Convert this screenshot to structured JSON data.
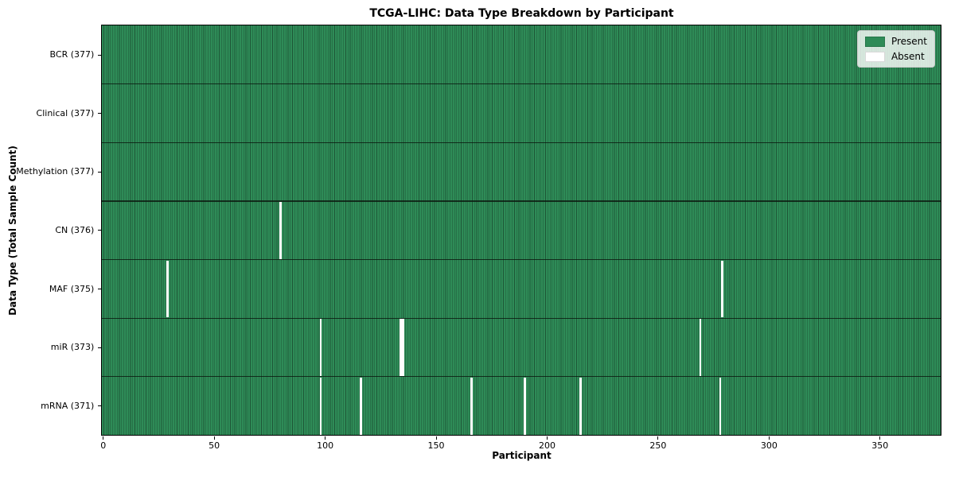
{
  "chart_data": {
    "type": "heatmap",
    "title": "TCGA-LIHC: Data Type Breakdown by Participant",
    "xlabel": "Participant",
    "ylabel": "Data Type (Total Sample Count)",
    "x_ticks": [
      0,
      50,
      100,
      150,
      200,
      250,
      300,
      350
    ],
    "x_range": [
      0,
      377
    ],
    "n_participants": 377,
    "grid": false,
    "legend_position": "upper-right",
    "colors": {
      "present": "#2e8b57",
      "absent": "#ffffff",
      "cell_edge": "#1e5737",
      "row_separator": "#14241a",
      "legend_face": "#e4ebe4"
    },
    "legend": {
      "entries": [
        {
          "label": "Present",
          "color": "#2e8b57"
        },
        {
          "label": "Absent",
          "color": "#ffffff"
        }
      ]
    },
    "rows": [
      {
        "data_type": "BCR",
        "label": "BCR (377)",
        "present_count": 377,
        "absent_participants": []
      },
      {
        "data_type": "Clinical",
        "label": "Clinical (377)",
        "present_count": 377,
        "absent_participants": []
      },
      {
        "data_type": "Methylation",
        "label": "Methylation (377)",
        "present_count": 377,
        "absent_participants": []
      },
      {
        "data_type": "CN",
        "label": "CN (376)",
        "present_count": 376,
        "absent_participants": [
          80
        ]
      },
      {
        "data_type": "MAF",
        "label": "MAF (375)",
        "present_count": 375,
        "absent_participants": [
          29,
          279
        ]
      },
      {
        "data_type": "miR",
        "label": "miR (373)",
        "present_count": 373,
        "absent_participants": [
          98,
          134,
          135,
          269
        ]
      },
      {
        "data_type": "mRNA",
        "label": "mRNA (371)",
        "present_count": 371,
        "absent_participants": [
          98,
          116,
          166,
          190,
          215,
          278
        ]
      }
    ]
  }
}
